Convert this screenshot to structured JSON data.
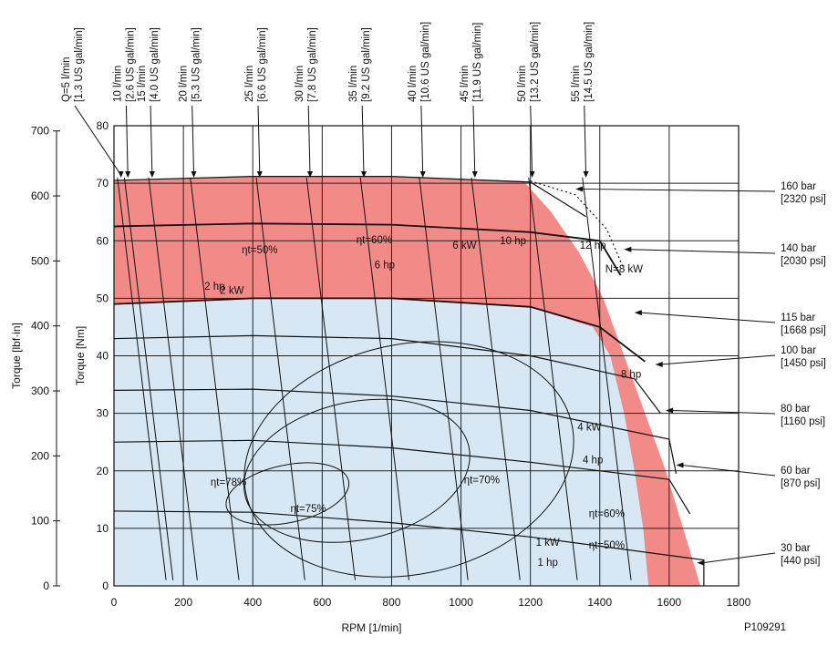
{
  "chart_data": {
    "type": "line",
    "code": "P109291",
    "x_axis": {
      "label": "RPM [1/min]",
      "ticks": [
        "0",
        "200",
        "400",
        "600",
        "800",
        "1000",
        "1200",
        "1400",
        "1600",
        "1800"
      ],
      "range": [
        0,
        1800
      ],
      "grid": true
    },
    "y_axis_nm": {
      "label": "Torque [Nm]",
      "ticks": [
        "0",
        "10",
        "20",
        "30",
        "40",
        "50",
        "60",
        "70",
        "80"
      ],
      "range": [
        0,
        80
      ],
      "grid": true
    },
    "y_axis_lbf": {
      "label": "Torque [lbf·in]",
      "ticks": [
        "0",
        "100",
        "200",
        "300",
        "400",
        "500",
        "600",
        "700"
      ],
      "range": [
        0,
        708
      ]
    },
    "colors": {
      "continuous_zone": "#d7e8f4",
      "intermittent_zone": "#f28b87",
      "lines": "#111111"
    },
    "flow_lines": [
      {
        "label": "Q=5 l/min",
        "sub": "[1.3 US gal/min]",
        "rpm": 0
      },
      {
        "label": "10 l/min",
        "sub": "[2.6 US gal/min]",
        "rpm": 20
      },
      {
        "label": "15 l/min",
        "sub": "[4.0 US gal/min]",
        "rpm": 90
      },
      {
        "label": "20 l/min",
        "sub": "[5.3 US gal/min]",
        "rpm": 210
      },
      {
        "label": "25 l/min",
        "sub": "[6.6 US gal/min]",
        "rpm": 400
      },
      {
        "label": "30 l/min",
        "sub": "[7.8 US gal/min]",
        "rpm": 545
      },
      {
        "label": "35 l/min",
        "sub": "[9.2 US gal/min]",
        "rpm": 700
      },
      {
        "label": "40 l/min",
        "sub": "[10.6 US gal/min]",
        "rpm": 870
      },
      {
        "label": "45 l/min",
        "sub": "[11.9 US gal/min]",
        "rpm": 1020
      },
      {
        "label": "50 l/min",
        "sub": "[13.2 US gal/min]",
        "rpm": 1185
      },
      {
        "label": "55 l/min",
        "sub": "[14.5 US gal/min]",
        "rpm": 1340
      }
    ],
    "pressure_lines": [
      {
        "label": "160 bar",
        "sub": "[2320 psi]",
        "torque": [
          [
            0,
            70.5
          ],
          [
            400,
            71.2
          ],
          [
            800,
            71.2
          ],
          [
            1200,
            70.2
          ]
        ],
        "end_rpm": 1360
      },
      {
        "label": "140 bar",
        "sub": "[2030 psi]",
        "torque": [
          [
            0,
            62.5
          ],
          [
            400,
            63.0
          ],
          [
            800,
            62.8
          ],
          [
            1200,
            61.5
          ],
          [
            1400,
            60.0
          ]
        ],
        "end_rpm": 1460
      },
      {
        "label": "115 bar",
        "sub": "[1668 psi]",
        "torque": [
          [
            0,
            49.0
          ],
          [
            400,
            50.0
          ],
          [
            800,
            50.0
          ],
          [
            1200,
            48.5
          ],
          [
            1400,
            45.0
          ]
        ],
        "end_rpm": 1530
      },
      {
        "label": "100 bar",
        "sub": "[1450 psi]",
        "torque": [
          [
            0,
            43.0
          ],
          [
            400,
            43.5
          ],
          [
            800,
            43.0
          ],
          [
            1200,
            40.0
          ],
          [
            1500,
            36.0
          ]
        ],
        "end_rpm": 1575
      },
      {
        "label": "80 bar",
        "sub": "[1160 psi]",
        "torque": [
          [
            0,
            34.0
          ],
          [
            400,
            34.2
          ],
          [
            800,
            33.0
          ],
          [
            1200,
            30.5
          ],
          [
            1600,
            25.5
          ]
        ],
        "end_rpm": 1620
      },
      {
        "label": "60 bar",
        "sub": "[870 psi]",
        "torque": [
          [
            0,
            25.0
          ],
          [
            400,
            25.3
          ],
          [
            800,
            24.0
          ],
          [
            1200,
            21.5
          ],
          [
            1600,
            18.5
          ]
        ],
        "end_rpm": 1660
      },
      {
        "label": "30 bar",
        "sub": "[440 psi]",
        "torque": [
          [
            0,
            13.0
          ],
          [
            400,
            12.8
          ],
          [
            800,
            11.0
          ],
          [
            1200,
            8.5
          ],
          [
            1700,
            4.5
          ]
        ],
        "end_rpm": 1700
      }
    ],
    "continuous_zone": [
      [
        0,
        0
      ],
      [
        0,
        49
      ],
      [
        400,
        50
      ],
      [
        800,
        50
      ],
      [
        1200,
        48.5
      ],
      [
        1380,
        45
      ],
      [
        1430,
        40
      ],
      [
        1470,
        30
      ],
      [
        1500,
        20
      ],
      [
        1525,
        10
      ],
      [
        1540,
        0
      ]
    ],
    "intermittent_zone": [
      [
        0,
        49
      ],
      [
        0,
        70.5
      ],
      [
        400,
        71.2
      ],
      [
        800,
        71.2
      ],
      [
        1180,
        70.4
      ],
      [
        1260,
        65
      ],
      [
        1340,
        58
      ],
      [
        1410,
        50
      ],
      [
        1470,
        40
      ],
      [
        1530,
        30
      ],
      [
        1590,
        20
      ],
      [
        1640,
        10
      ],
      [
        1690,
        0
      ],
      [
        1540,
        0
      ],
      [
        1525,
        10
      ],
      [
        1500,
        20
      ],
      [
        1470,
        30
      ],
      [
        1430,
        40
      ],
      [
        1380,
        45
      ],
      [
        1200,
        48.5
      ],
      [
        800,
        50
      ],
      [
        400,
        50
      ]
    ],
    "max_boundary_dotted": [
      [
        1200,
        70.4
      ],
      [
        1330,
        68
      ],
      [
        1420,
        62
      ],
      [
        1470,
        55
      ]
    ],
    "annotations": [
      {
        "text": "ηt=50%",
        "rpm": 420,
        "torque": 57.8
      },
      {
        "text": "ηt=60%",
        "rpm": 750,
        "torque": 59.6
      },
      {
        "text": "6 kW",
        "rpm": 1010,
        "torque": 58.6
      },
      {
        "text": "10 hp",
        "rpm": 1150,
        "torque": 59.4
      },
      {
        "text": "12 hp",
        "rpm": 1380,
        "torque": 58.6
      },
      {
        "text": "6 hp",
        "rpm": 780,
        "torque": 55.2
      },
      {
        "text": "N=8 kW",
        "rpm": 1470,
        "torque": 54.5
      },
      {
        "text": "2 hp",
        "rpm": 290,
        "torque": 51.5
      },
      {
        "text": "2 kW",
        "rpm": 340,
        "torque": 50.8
      },
      {
        "text": "8 hp",
        "rpm": 1490,
        "torque": 36.2
      },
      {
        "text": "4 kW",
        "rpm": 1370,
        "torque": 27.0
      },
      {
        "text": "4 hp",
        "rpm": 1380,
        "torque": 21.3
      },
      {
        "text": "ηt=78%",
        "rpm": 330,
        "torque": 17.4
      },
      {
        "text": "ηt=70%",
        "rpm": 1060,
        "torque": 17.8
      },
      {
        "text": "ηt=75%",
        "rpm": 560,
        "torque": 12.8
      },
      {
        "text": "ηt=60%",
        "rpm": 1420,
        "torque": 12.0
      },
      {
        "text": "1 kW",
        "rpm": 1250,
        "torque": 7.0
      },
      {
        "text": "ηt=50%",
        "rpm": 1420,
        "torque": 6.5
      },
      {
        "text": "1 hp",
        "rpm": 1250,
        "torque": 3.5
      }
    ]
  }
}
